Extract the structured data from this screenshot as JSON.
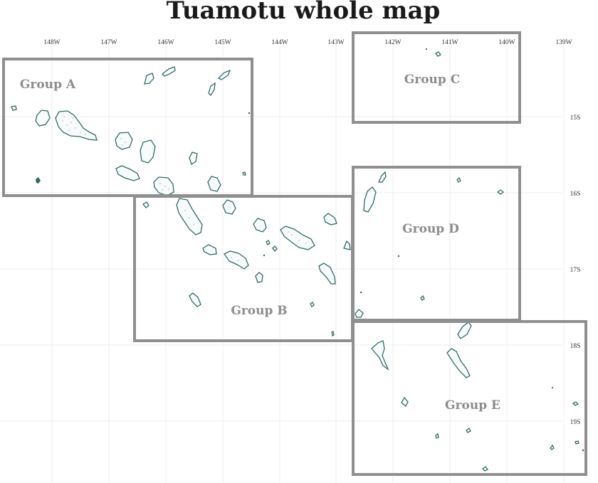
{
  "title": "Tuamotu whole map",
  "lon_ticks": [
    "148W",
    "147W",
    "146W",
    "145W",
    "144W",
    "143W",
    "142W",
    "141W",
    "140W",
    "139W"
  ],
  "lat_ticks": [
    "15S",
    "16S",
    "17S",
    "18S",
    "19S"
  ],
  "groups": {
    "a": "Group A",
    "b": "Group B",
    "c": "Group C",
    "d": "Group D",
    "e": "Group E"
  },
  "colors": {
    "atoll_outline": "#2f6b66",
    "box_border": "#8f8f8f",
    "group_label": "#8c8c8c",
    "gridline": "#ececec"
  }
}
